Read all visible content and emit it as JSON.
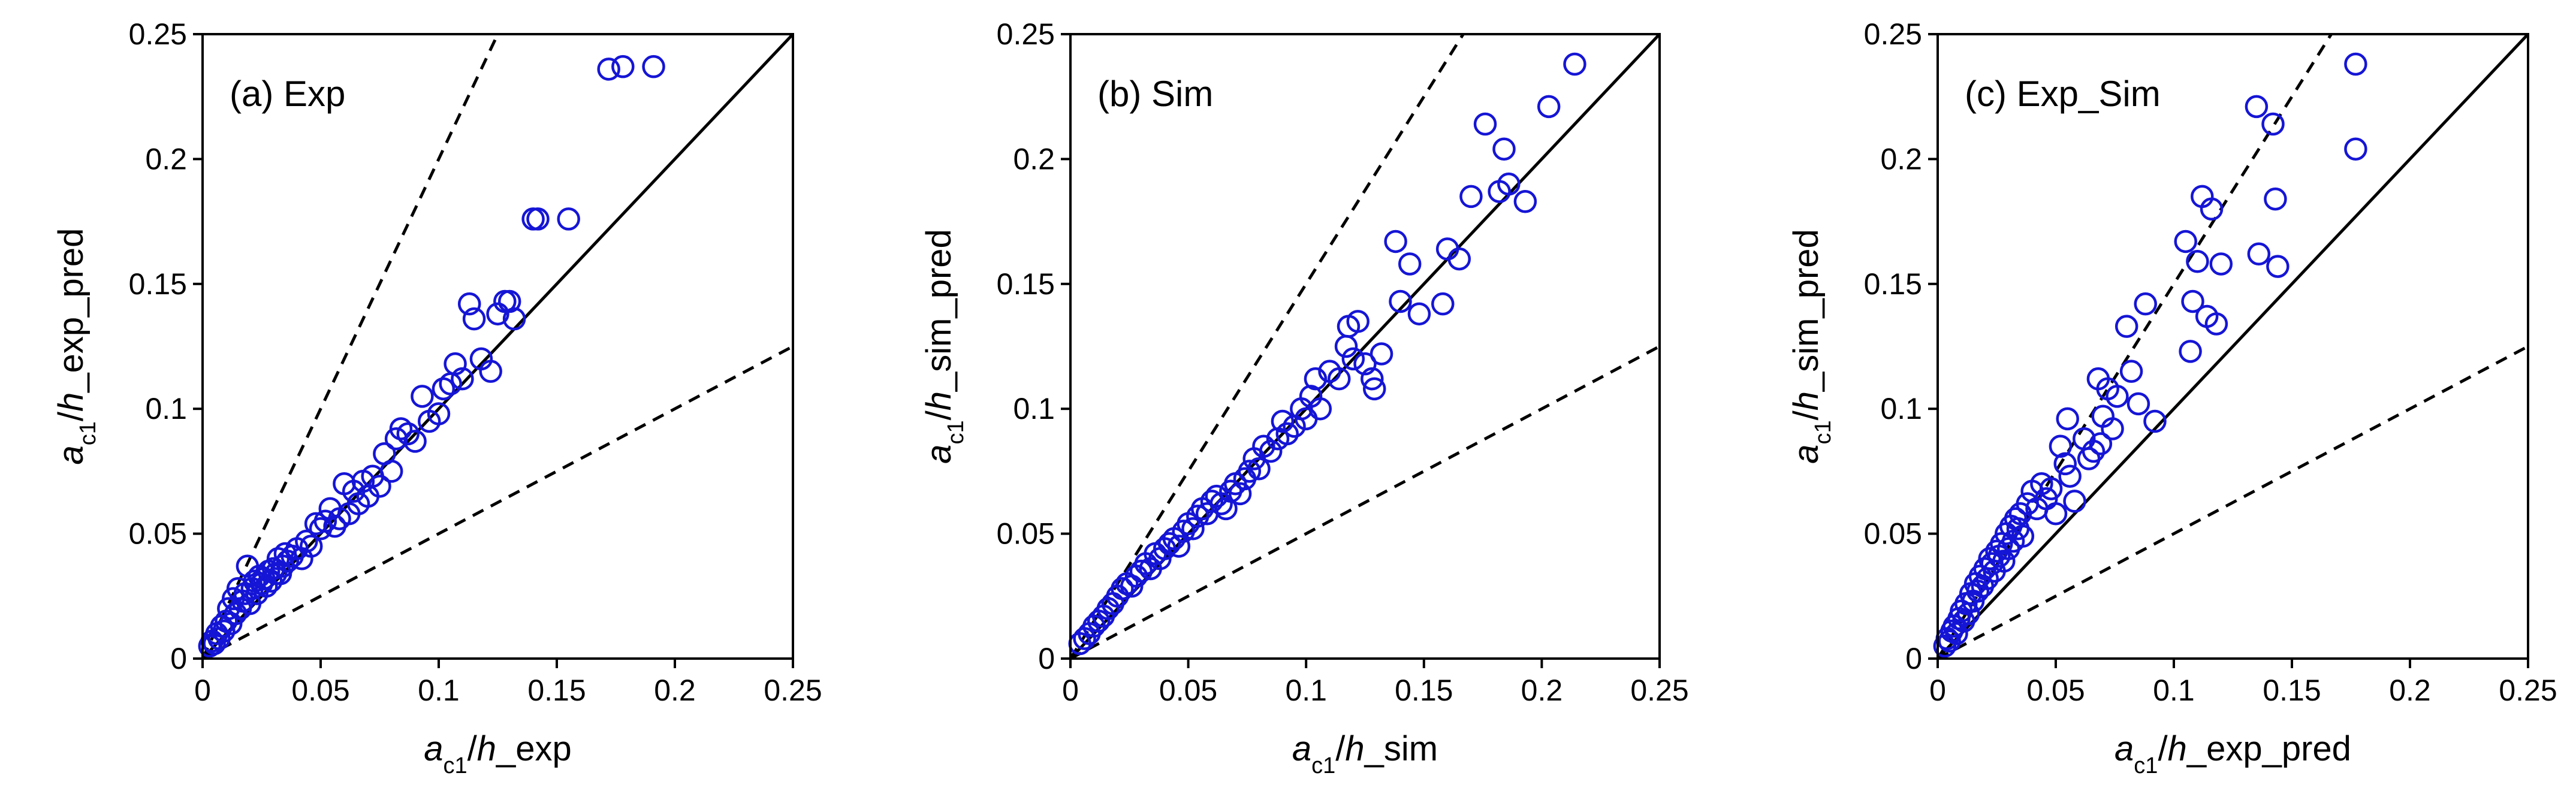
{
  "colors": {
    "marker": "#1515d6",
    "axis": "#000000",
    "line": "#000000",
    "background": "#ffffff"
  },
  "chart_data": [
    {
      "type": "scatter",
      "panel_label": "(a) Exp",
      "x_label": {
        "main": "a",
        "sub": "c1",
        "slash": "/",
        "var": "h",
        "tail": "_exp"
      },
      "y_label": {
        "main": "a",
        "sub": "c1",
        "slash": "/",
        "var": "h",
        "tail": "_exp_pred"
      },
      "xlim": [
        0,
        0.25
      ],
      "ylim": [
        0,
        0.25
      ],
      "x_ticks": [
        "0",
        "0.05",
        "0.1",
        "0.15",
        "0.2",
        "0.25"
      ],
      "y_ticks": [
        "0",
        "0.05",
        "0.1",
        "0.15",
        "0.2",
        "0.25"
      ],
      "reference_lines": [
        {
          "style": "solid",
          "slope": 1.0
        },
        {
          "style": "dashed",
          "slope": 2.0
        },
        {
          "style": "dashed",
          "slope": 0.5
        }
      ],
      "points": [
        [
          0.003,
          0.005
        ],
        [
          0.004,
          0.007
        ],
        [
          0.005,
          0.006
        ],
        [
          0.006,
          0.01
        ],
        [
          0.007,
          0.008
        ],
        [
          0.008,
          0.013
        ],
        [
          0.009,
          0.011
        ],
        [
          0.01,
          0.015
        ],
        [
          0.011,
          0.02
        ],
        [
          0.012,
          0.014
        ],
        [
          0.013,
          0.024
        ],
        [
          0.014,
          0.018
        ],
        [
          0.015,
          0.028
        ],
        [
          0.016,
          0.02
        ],
        [
          0.017,
          0.023
        ],
        [
          0.018,
          0.026
        ],
        [
          0.019,
          0.037
        ],
        [
          0.02,
          0.022
        ],
        [
          0.021,
          0.028
        ],
        [
          0.022,
          0.031
        ],
        [
          0.023,
          0.026
        ],
        [
          0.024,
          0.033
        ],
        [
          0.025,
          0.03
        ],
        [
          0.026,
          0.032
        ],
        [
          0.027,
          0.029
        ],
        [
          0.028,
          0.035
        ],
        [
          0.029,
          0.031
        ],
        [
          0.03,
          0.036
        ],
        [
          0.031,
          0.034
        ],
        [
          0.032,
          0.04
        ],
        [
          0.033,
          0.034
        ],
        [
          0.034,
          0.037
        ],
        [
          0.035,
          0.042
        ],
        [
          0.036,
          0.039
        ],
        [
          0.038,
          0.041
        ],
        [
          0.04,
          0.044
        ],
        [
          0.042,
          0.04
        ],
        [
          0.044,
          0.047
        ],
        [
          0.046,
          0.045
        ],
        [
          0.048,
          0.054
        ],
        [
          0.05,
          0.052
        ],
        [
          0.052,
          0.055
        ],
        [
          0.054,
          0.06
        ],
        [
          0.056,
          0.053
        ],
        [
          0.058,
          0.056
        ],
        [
          0.06,
          0.07
        ],
        [
          0.062,
          0.058
        ],
        [
          0.064,
          0.067
        ],
        [
          0.066,
          0.062
        ],
        [
          0.068,
          0.071
        ],
        [
          0.07,
          0.065
        ],
        [
          0.072,
          0.073
        ],
        [
          0.075,
          0.069
        ],
        [
          0.077,
          0.082
        ],
        [
          0.08,
          0.075
        ],
        [
          0.082,
          0.088
        ],
        [
          0.084,
          0.092
        ],
        [
          0.087,
          0.09
        ],
        [
          0.09,
          0.087
        ],
        [
          0.093,
          0.105
        ],
        [
          0.096,
          0.095
        ],
        [
          0.1,
          0.098
        ],
        [
          0.102,
          0.108
        ],
        [
          0.105,
          0.11
        ],
        [
          0.107,
          0.118
        ],
        [
          0.11,
          0.112
        ],
        [
          0.113,
          0.142
        ],
        [
          0.115,
          0.136
        ],
        [
          0.118,
          0.12
        ],
        [
          0.122,
          0.115
        ],
        [
          0.125,
          0.138
        ],
        [
          0.128,
          0.143
        ],
        [
          0.13,
          0.143
        ],
        [
          0.132,
          0.136
        ],
        [
          0.14,
          0.176
        ],
        [
          0.142,
          0.176
        ],
        [
          0.155,
          0.176
        ],
        [
          0.172,
          0.236
        ],
        [
          0.178,
          0.237
        ],
        [
          0.191,
          0.237
        ]
      ]
    },
    {
      "type": "scatter",
      "panel_label": "(b) Sim",
      "x_label": {
        "main": "a",
        "sub": "c1",
        "slash": "/",
        "var": "h",
        "tail": "_sim"
      },
      "y_label": {
        "main": "a",
        "sub": "c1",
        "slash": "/",
        "var": "h",
        "tail": "_sim_pred"
      },
      "xlim": [
        0,
        0.25
      ],
      "ylim": [
        0,
        0.25
      ],
      "x_ticks": [
        "0",
        "0.05",
        "0.1",
        "0.15",
        "0.2",
        "0.25"
      ],
      "y_ticks": [
        "0",
        "0.05",
        "0.1",
        "0.15",
        "0.2",
        "0.25"
      ],
      "reference_lines": [
        {
          "style": "solid",
          "slope": 1.0
        },
        {
          "style": "dashed",
          "slope": 1.5
        },
        {
          "style": "dashed",
          "slope": 0.5
        }
      ],
      "points": [
        [
          0.004,
          0.006
        ],
        [
          0.006,
          0.008
        ],
        [
          0.008,
          0.01
        ],
        [
          0.01,
          0.013
        ],
        [
          0.012,
          0.015
        ],
        [
          0.014,
          0.017
        ],
        [
          0.016,
          0.02
        ],
        [
          0.018,
          0.022
        ],
        [
          0.02,
          0.025
        ],
        [
          0.022,
          0.028
        ],
        [
          0.024,
          0.03
        ],
        [
          0.026,
          0.029
        ],
        [
          0.028,
          0.033
        ],
        [
          0.03,
          0.035
        ],
        [
          0.032,
          0.038
        ],
        [
          0.034,
          0.036
        ],
        [
          0.036,
          0.042
        ],
        [
          0.038,
          0.04
        ],
        [
          0.04,
          0.044
        ],
        [
          0.042,
          0.046
        ],
        [
          0.044,
          0.048
        ],
        [
          0.046,
          0.045
        ],
        [
          0.048,
          0.051
        ],
        [
          0.05,
          0.054
        ],
        [
          0.052,
          0.052
        ],
        [
          0.054,
          0.057
        ],
        [
          0.056,
          0.06
        ],
        [
          0.058,
          0.058
        ],
        [
          0.06,
          0.063
        ],
        [
          0.062,
          0.065
        ],
        [
          0.064,
          0.062
        ],
        [
          0.066,
          0.06
        ],
        [
          0.068,
          0.067
        ],
        [
          0.07,
          0.07
        ],
        [
          0.072,
          0.066
        ],
        [
          0.074,
          0.072
        ],
        [
          0.076,
          0.075
        ],
        [
          0.078,
          0.08
        ],
        [
          0.08,
          0.076
        ],
        [
          0.082,
          0.085
        ],
        [
          0.085,
          0.083
        ],
        [
          0.088,
          0.088
        ],
        [
          0.09,
          0.095
        ],
        [
          0.092,
          0.09
        ],
        [
          0.095,
          0.093
        ],
        [
          0.098,
          0.1
        ],
        [
          0.1,
          0.096
        ],
        [
          0.102,
          0.105
        ],
        [
          0.104,
          0.112
        ],
        [
          0.106,
          0.1
        ],
        [
          0.11,
          0.115
        ],
        [
          0.114,
          0.112
        ],
        [
          0.117,
          0.125
        ],
        [
          0.118,
          0.133
        ],
        [
          0.12,
          0.12
        ],
        [
          0.122,
          0.135
        ],
        [
          0.125,
          0.118
        ],
        [
          0.128,
          0.112
        ],
        [
          0.129,
          0.108
        ],
        [
          0.132,
          0.122
        ],
        [
          0.138,
          0.167
        ],
        [
          0.14,
          0.143
        ],
        [
          0.144,
          0.158
        ],
        [
          0.148,
          0.138
        ],
        [
          0.158,
          0.142
        ],
        [
          0.16,
          0.164
        ],
        [
          0.165,
          0.16
        ],
        [
          0.17,
          0.185
        ],
        [
          0.176,
          0.214
        ],
        [
          0.182,
          0.187
        ],
        [
          0.184,
          0.204
        ],
        [
          0.186,
          0.19
        ],
        [
          0.193,
          0.183
        ],
        [
          0.203,
          0.221
        ],
        [
          0.214,
          0.238
        ]
      ]
    },
    {
      "type": "scatter",
      "panel_label": "(c) Exp_Sim",
      "x_label": {
        "main": "a",
        "sub": "c1",
        "slash": "/",
        "var": "h",
        "tail": "_exp_pred"
      },
      "y_label": {
        "main": "a",
        "sub": "c1",
        "slash": "/",
        "var": "h",
        "tail": "_sim_pred"
      },
      "xlim": [
        0,
        0.25
      ],
      "ylim": [
        0,
        0.25
      ],
      "x_ticks": [
        "0",
        "0.05",
        "0.1",
        "0.15",
        "0.2",
        "0.25"
      ],
      "y_ticks": [
        "0",
        "0.05",
        "0.1",
        "0.15",
        "0.2",
        "0.25"
      ],
      "reference_lines": [
        {
          "style": "solid",
          "slope": 1.0
        },
        {
          "style": "dashed",
          "slope": 1.5
        },
        {
          "style": "dashed",
          "slope": 0.5
        }
      ],
      "points": [
        [
          0.003,
          0.005
        ],
        [
          0.004,
          0.008
        ],
        [
          0.005,
          0.007
        ],
        [
          0.006,
          0.011
        ],
        [
          0.007,
          0.013
        ],
        [
          0.008,
          0.01
        ],
        [
          0.009,
          0.016
        ],
        [
          0.01,
          0.019
        ],
        [
          0.011,
          0.015
        ],
        [
          0.012,
          0.022
        ],
        [
          0.013,
          0.018
        ],
        [
          0.014,
          0.026
        ],
        [
          0.015,
          0.023
        ],
        [
          0.016,
          0.03
        ],
        [
          0.017,
          0.027
        ],
        [
          0.018,
          0.033
        ],
        [
          0.019,
          0.029
        ],
        [
          0.02,
          0.036
        ],
        [
          0.021,
          0.032
        ],
        [
          0.022,
          0.04
        ],
        [
          0.023,
          0.038
        ],
        [
          0.024,
          0.035
        ],
        [
          0.025,
          0.043
        ],
        [
          0.026,
          0.041
        ],
        [
          0.027,
          0.046
        ],
        [
          0.028,
          0.039
        ],
        [
          0.029,
          0.05
        ],
        [
          0.03,
          0.044
        ],
        [
          0.031,
          0.053
        ],
        [
          0.032,
          0.047
        ],
        [
          0.033,
          0.056
        ],
        [
          0.034,
          0.052
        ],
        [
          0.035,
          0.058
        ],
        [
          0.036,
          0.049
        ],
        [
          0.038,
          0.062
        ],
        [
          0.04,
          0.067
        ],
        [
          0.042,
          0.06
        ],
        [
          0.044,
          0.07
        ],
        [
          0.046,
          0.064
        ],
        [
          0.048,
          0.068
        ],
        [
          0.05,
          0.058
        ],
        [
          0.052,
          0.085
        ],
        [
          0.054,
          0.078
        ],
        [
          0.055,
          0.096
        ],
        [
          0.056,
          0.073
        ],
        [
          0.058,
          0.063
        ],
        [
          0.062,
          0.088
        ],
        [
          0.064,
          0.08
        ],
        [
          0.066,
          0.083
        ],
        [
          0.068,
          0.112
        ],
        [
          0.069,
          0.086
        ],
        [
          0.07,
          0.097
        ],
        [
          0.072,
          0.108
        ],
        [
          0.074,
          0.092
        ],
        [
          0.076,
          0.105
        ],
        [
          0.08,
          0.133
        ],
        [
          0.082,
          0.115
        ],
        [
          0.085,
          0.102
        ],
        [
          0.088,
          0.142
        ],
        [
          0.092,
          0.095
        ],
        [
          0.105,
          0.167
        ],
        [
          0.107,
          0.123
        ],
        [
          0.108,
          0.143
        ],
        [
          0.11,
          0.159
        ],
        [
          0.112,
          0.185
        ],
        [
          0.114,
          0.137
        ],
        [
          0.116,
          0.18
        ],
        [
          0.118,
          0.134
        ],
        [
          0.12,
          0.158
        ],
        [
          0.135,
          0.221
        ],
        [
          0.136,
          0.162
        ],
        [
          0.142,
          0.214
        ],
        [
          0.143,
          0.184
        ],
        [
          0.144,
          0.157
        ],
        [
          0.177,
          0.238
        ],
        [
          0.177,
          0.204
        ]
      ]
    }
  ]
}
